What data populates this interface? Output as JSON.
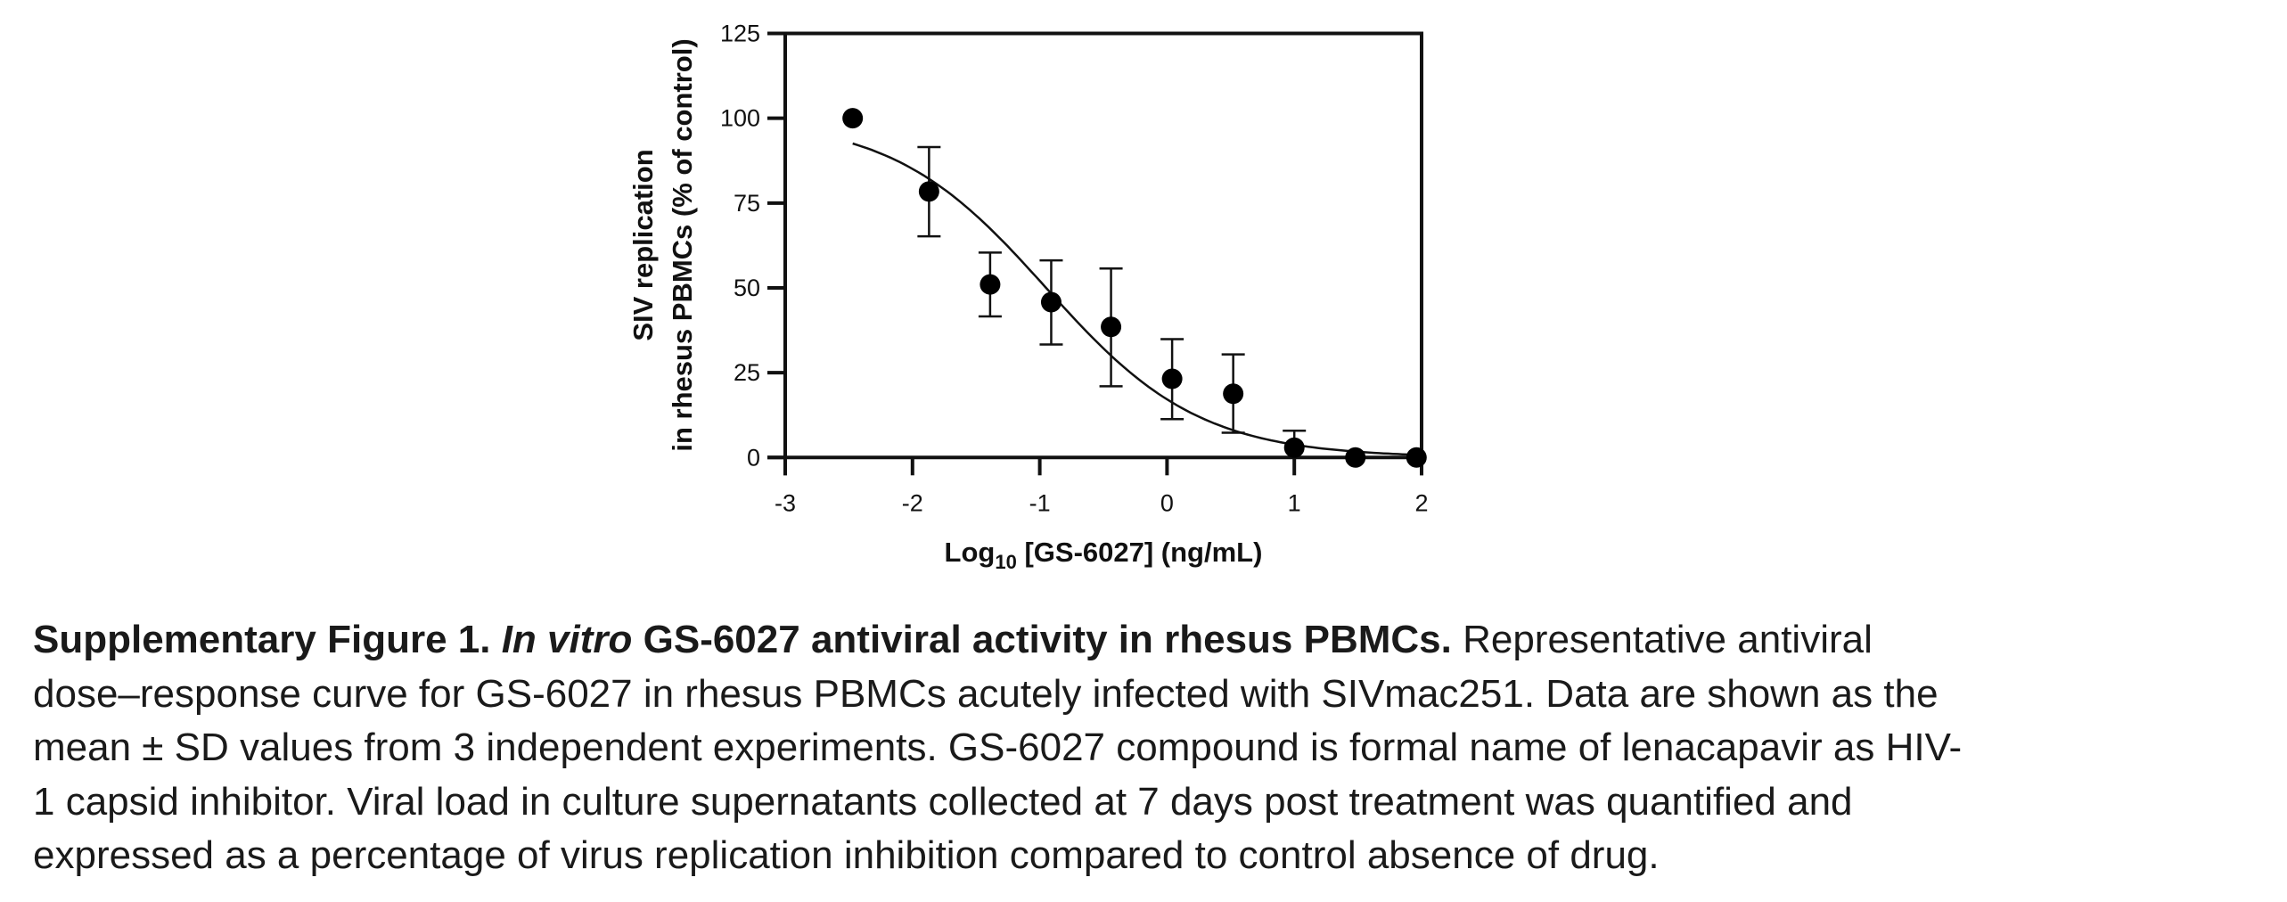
{
  "chart_data": {
    "type": "scatter",
    "title": "",
    "xlabel": {
      "prefix": "Log",
      "subscript": "10",
      "suffix": " [GS-6027] (ng/mL)"
    },
    "ylabel": [
      "SIV replication",
      "in rhesus PBMCs (% of control)"
    ],
    "xlim": [
      -3,
      2
    ],
    "ylim": [
      0,
      125
    ],
    "xticks": [
      "-3",
      "-2",
      "-1",
      "0",
      "1",
      "2"
    ],
    "yticks": [
      "0",
      "25",
      "50",
      "75",
      "100",
      "125"
    ],
    "grid": false,
    "legend": "none",
    "series": [
      {
        "name": "GS-6027 (mean ± SD)",
        "x": [
          -2.47,
          -1.87,
          -1.39,
          -0.91,
          -0.44,
          0.04,
          0.52,
          1.0,
          1.48,
          1.96
        ],
        "y": [
          100,
          78.4,
          51.0,
          45.8,
          38.5,
          23.2,
          18.8,
          2.9,
          0,
          0
        ],
        "err_upper": [
          null,
          91.5,
          60.4,
          58.1,
          55.7,
          34.9,
          30.4,
          7.9,
          null,
          null
        ],
        "err_lower": [
          null,
          65.2,
          41.6,
          33.3,
          21.0,
          11.3,
          7.3,
          null,
          null,
          null
        ]
      }
    ],
    "fit_curve": {
      "name": "dose-response fit",
      "x_range": [
        -2.47,
        1.96
      ],
      "top": 100,
      "bottom": 0,
      "log_ic50": -0.95,
      "hill_slope": 0.72
    }
  },
  "caption": {
    "label": "Supplementary Figure 1.",
    "title_italic": "In vitro",
    "title_rest": " GS-6027 antiviral activity in rhesus PBMCs.",
    "lines": [
      " Representative antiviral",
      "dose–response curve for GS-6027 in rhesus PBMCs acutely infected with SIVmac251. Data are shown as the",
      "mean ± SD values from 3 independent experiments. GS-6027 compound is formal name of lenacapavir as HIV-",
      "1 capsid inhibitor. Viral load in culture supernatants collected at 7 days post treatment was quantified and",
      "expressed as a percentage of virus replication inhibition compared to control absence of drug."
    ]
  }
}
